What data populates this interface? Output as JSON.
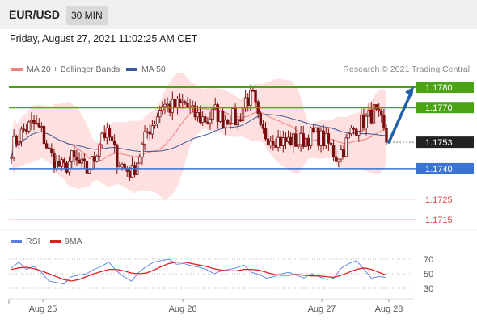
{
  "header": {
    "symbol": "EUR/USD",
    "timeframe": "30 MIN"
  },
  "datetime": "Friday, August 27, 2021 11:02:25 AM CET",
  "source": "Research © 2021 Trading Central",
  "colors": {
    "resistance": "#4aa312",
    "support": "#3a73d4",
    "red_level": "#e04848",
    "current": "#222222",
    "candle": "#7a0f0f",
    "bollinger_fill": "#fde0df",
    "ma20": "#f08080",
    "ma50": "#3a5b9a",
    "arrow": "#2060aa",
    "rsi": "#5b7fe0",
    "rsi_ma": "#e02020"
  },
  "chart_data": [
    {
      "type": "candlestick",
      "legend": [
        {
          "name": "MA 20 + Bollinger Bands",
          "color": "#f08080"
        },
        {
          "name": "MA 50",
          "color": "#3a5b9a"
        }
      ],
      "levels": [
        {
          "value": 1.178,
          "label": "1.1780",
          "kind": "resistance"
        },
        {
          "value": 1.177,
          "label": "1.1770",
          "kind": "resistance"
        },
        {
          "value": 1.1753,
          "label": "1.1753",
          "kind": "current"
        },
        {
          "value": 1.174,
          "label": "1.1740",
          "kind": "support"
        },
        {
          "value": 1.1725,
          "label": "1.1725",
          "kind": "red"
        },
        {
          "value": 1.1715,
          "label": "1.1715",
          "kind": "red"
        }
      ],
      "x_labels": [
        "Aug 25",
        "Aug 26",
        "Aug 27",
        "Aug 28"
      ],
      "price_path": [
        [
          0,
          1.175
        ],
        [
          3,
          1.1756
        ],
        [
          6,
          1.176
        ],
        [
          9,
          1.1762
        ],
        [
          12,
          1.1758
        ],
        [
          15,
          1.1748
        ],
        [
          18,
          1.1742
        ],
        [
          21,
          1.174
        ],
        [
          24,
          1.1745
        ],
        [
          27,
          1.1742
        ],
        [
          30,
          1.1739
        ],
        [
          33,
          1.1745
        ],
        [
          36,
          1.1758
        ],
        [
          39,
          1.1755
        ],
        [
          42,
          1.1745
        ],
        [
          45,
          1.174
        ],
        [
          48,
          1.1738
        ],
        [
          51,
          1.1747
        ],
        [
          54,
          1.1758
        ],
        [
          57,
          1.1764
        ],
        [
          60,
          1.1772
        ],
        [
          63,
          1.177
        ],
        [
          66,
          1.1771
        ],
        [
          69,
          1.1772
        ],
        [
          72,
          1.1767
        ],
        [
          75,
          1.1765
        ],
        [
          78,
          1.1764
        ],
        [
          81,
          1.1768
        ],
        [
          84,
          1.1764
        ],
        [
          87,
          1.1766
        ],
        [
          90,
          1.1763
        ],
        [
          93,
          1.1774
        ],
        [
          96,
          1.1775
        ],
        [
          99,
          1.1758
        ],
        [
          102,
          1.1756
        ],
        [
          105,
          1.1755
        ],
        [
          108,
          1.1753
        ],
        [
          111,
          1.1754
        ],
        [
          114,
          1.1753
        ],
        [
          117,
          1.1755
        ],
        [
          120,
          1.1757
        ],
        [
          123,
          1.1755
        ],
        [
          126,
          1.1752
        ],
        [
          129,
          1.1746
        ],
        [
          132,
          1.175
        ],
        [
          135,
          1.1758
        ],
        [
          138,
          1.1762
        ],
        [
          141,
          1.1764
        ],
        [
          144,
          1.1768
        ],
        [
          147,
          1.1762
        ],
        [
          149,
          1.1753
        ]
      ],
      "projection": {
        "from": 1.1753,
        "to": 1.178
      }
    },
    {
      "type": "line",
      "title": "RSI",
      "legend": [
        {
          "name": "RSI",
          "color": "#5b7fe0"
        },
        {
          "name": "9MA",
          "color": "#e02020"
        }
      ],
      "y_ticks": [
        70,
        50,
        30
      ],
      "series": [
        {
          "name": "RSI",
          "values": [
            58,
            66,
            56,
            60,
            52,
            40,
            38,
            36,
            46,
            48,
            50,
            56,
            60,
            66,
            54,
            46,
            40,
            52,
            60,
            66,
            68,
            70,
            63,
            64,
            61,
            59,
            56,
            50,
            54,
            56,
            58,
            62,
            52,
            49,
            44,
            46,
            50,
            52,
            48,
            44,
            50,
            46,
            42,
            44,
            58,
            64,
            68,
            56,
            44,
            46,
            45
          ]
        },
        {
          "name": "9MA",
          "values": [
            56,
            58,
            59,
            57,
            54,
            50,
            46,
            42,
            40,
            42,
            46,
            50,
            53,
            56,
            56,
            54,
            51,
            50,
            51,
            55,
            60,
            64,
            66,
            66,
            64,
            62,
            60,
            57,
            55,
            54,
            54,
            56,
            56,
            55,
            52,
            49,
            48,
            48,
            49,
            48,
            47,
            47,
            46,
            45,
            48,
            52,
            56,
            58,
            56,
            52,
            48
          ]
        }
      ]
    }
  ]
}
